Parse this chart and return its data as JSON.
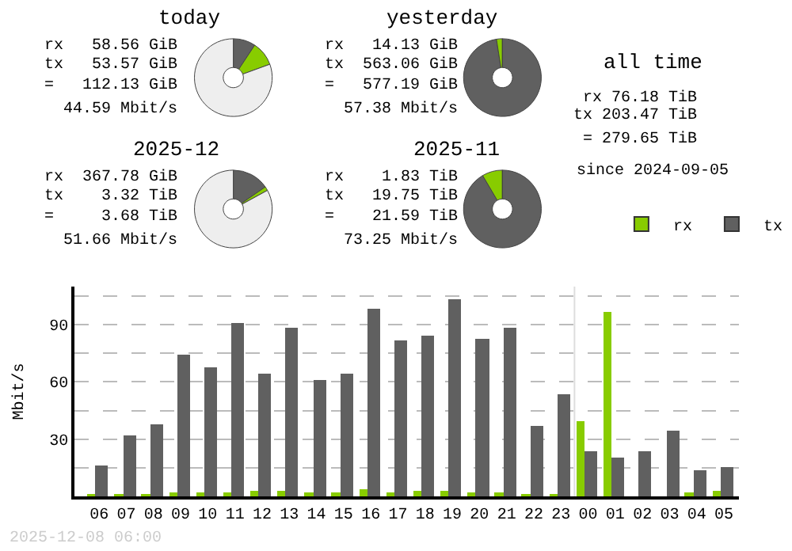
{
  "chart_data": [
    {
      "type": "donut",
      "title": "today",
      "categories": [
        "tx",
        "rx",
        null
      ],
      "values": [
        9.28,
        10.15,
        80.57
      ],
      "colors": [
        "#606060",
        "#88cc00",
        "#eeeeee"
      ],
      "annotations": [
        "rx 58.56 GiB",
        "tx 53.57 GiB",
        "= 112.13 GiB",
        "44.59 Mbit/s"
      ],
      "legend": "right"
    },
    {
      "type": "donut",
      "title": "yesterday",
      "categories": [
        null,
        null,
        null
      ],
      "values": [
        97.55,
        2.45,
        0
      ],
      "colors": [
        "#606060",
        "#88cc00",
        "#eeeeee"
      ],
      "annotations": [
        "rx 14.13 GiB",
        "tx 563.06 GiB",
        "= 577.19 GiB",
        "57.38 Mbit/s"
      ]
    },
    {
      "type": "other",
      "title": "all time",
      "annotations": [
        "rx 76.18 TiB",
        "tx 203.47 TiB",
        "= 279.65 TiB",
        "since 2024-09-05"
      ]
    },
    {
      "type": "donut",
      "title": "2025-12",
      "categories": [
        null,
        null,
        null
      ],
      "values": [
        15.38,
        1.66,
        82.96
      ],
      "colors": [
        "#606060",
        "#88cc00",
        "#eeeeee"
      ],
      "annotations": [
        "rx 367.78 GiB",
        "tx 3.32 TiB",
        "= 3.68 TiB",
        "51.66 Mbit/s"
      ]
    },
    {
      "type": "donut",
      "title": "2025-11",
      "categories": [
        null,
        null,
        null
      ],
      "values": [
        91.52,
        8.48,
        0
      ],
      "colors": [
        "#606060",
        "#88cc00",
        "#eeeeee"
      ],
      "annotations": [
        "rx 1.83 TiB",
        "tx 19.75 TiB",
        "= 21.59 TiB",
        "73.25 Mbit/s"
      ]
    },
    {
      "type": "bar",
      "ylabel": "Mbit/s",
      "categories": [
        "06",
        "07",
        "08",
        "09",
        "10",
        "11",
        "12",
        "13",
        "14",
        "15",
        "16",
        "17",
        "18",
        "19",
        "20",
        "21",
        "22",
        "23",
        "00",
        "01",
        "02",
        "03",
        "04",
        "05"
      ],
      "series": [
        {
          "color": "#88cc00",
          "values": [
            1,
            1,
            1,
            2,
            2,
            2,
            3,
            3,
            2,
            2,
            3.5,
            2,
            3,
            3,
            2,
            2,
            1,
            1,
            39.5,
            97,
            0,
            0,
            2,
            3
          ]
        },
        {
          "color": "#606060",
          "values": [
            16,
            32,
            38,
            74.5,
            68,
            91,
            64.5,
            88.5,
            61,
            64.5,
            98.5,
            82,
            84.5,
            103.5,
            83,
            88.5,
            37,
            53.5,
            23.5,
            20,
            23.5,
            34.5,
            13.5,
            15
          ]
        }
      ],
      "ylim": [
        0,
        110
      ],
      "yticks": [
        {
          "value": 15,
          "label": null
        },
        30,
        {
          "value": 45,
          "label": null
        },
        60,
        {
          "value": 75,
          "label": null
        },
        90,
        {
          "value": 105,
          "label": null
        }
      ],
      "grid": "y",
      "ref_lines": [
        {
          "axis": "x",
          "value": "00",
          "color": "#dddddd"
        }
      ],
      "annotations": [
        "2025-12-08 06:00"
      ]
    }
  ]
}
